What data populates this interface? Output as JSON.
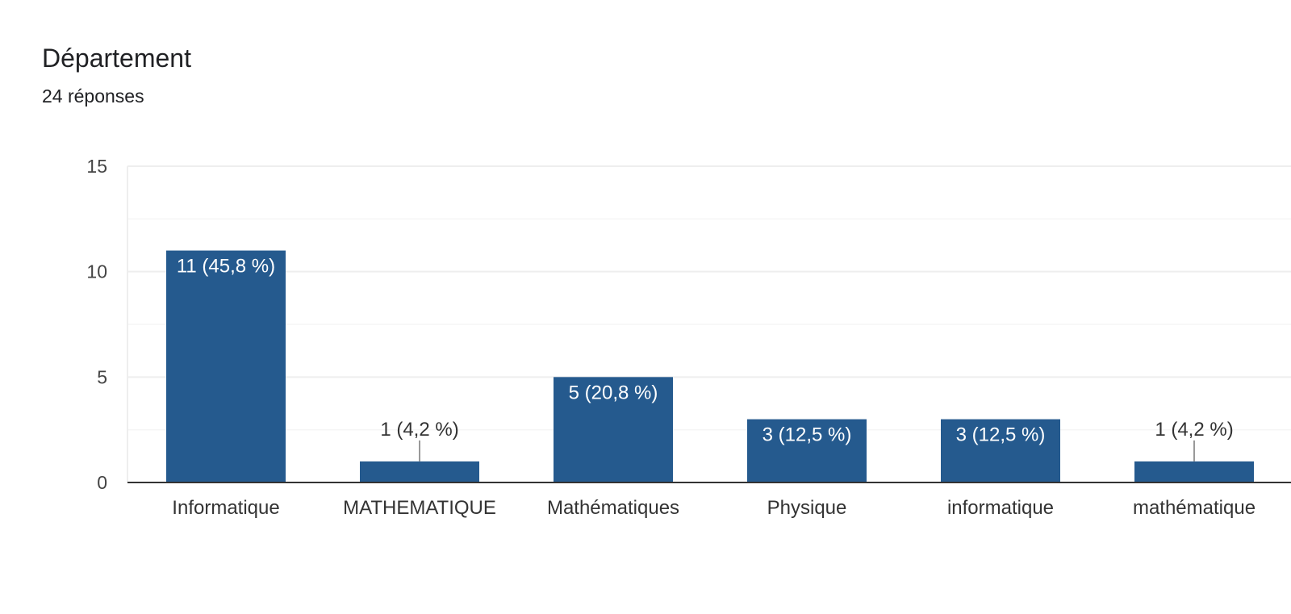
{
  "header": {
    "title": "Département",
    "subtitle": "24 réponses"
  },
  "colors": {
    "bar": "#255a8e",
    "gridline": "#eeeeee",
    "minor_gridline": "#f5f5f5",
    "axis": "#333333",
    "text": "#333333",
    "label_inside": "#ffffff",
    "leader": "#999999"
  },
  "chart_data": {
    "type": "bar",
    "categories": [
      "Informatique",
      "MATHEMATIQUE",
      "Mathématiques",
      "Physique",
      "informatique",
      "mathématique"
    ],
    "values": [
      11,
      1,
      5,
      3,
      3,
      1
    ],
    "data_labels": [
      "11 (45,8 %)",
      "1 (4,2 %)",
      "5 (20,8 %)",
      "3 (12,5 %)",
      "3 (12,5 %)",
      "1 (4,2 %)"
    ],
    "yticks": [
      0,
      5,
      10,
      15
    ],
    "ylim": [
      0,
      15
    ],
    "grid": true,
    "legend": "none",
    "title": "",
    "xlabel": "",
    "ylabel": ""
  }
}
